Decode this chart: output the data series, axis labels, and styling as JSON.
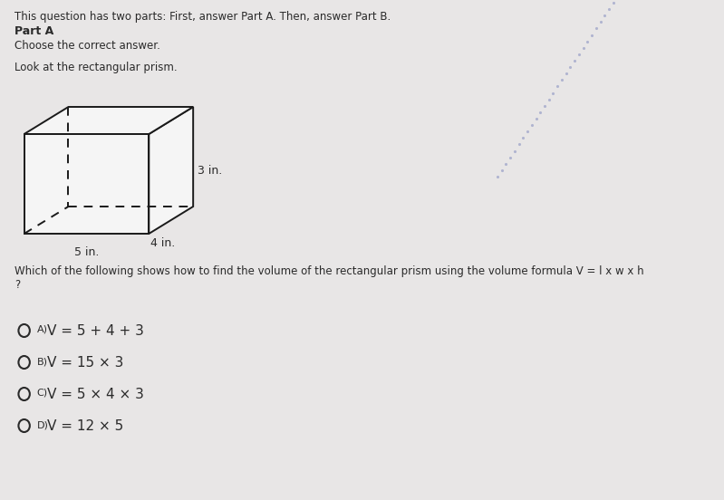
{
  "bg_color": "#e8e6e6",
  "text_color": "#2a2a2a",
  "header_line1": "This question has two parts: First, answer Part A. Then, answer Part B.",
  "header_line2": "Part A",
  "header_line3": "Choose the correct answer.",
  "header_line4": "Look at the rectangular prism.",
  "question_line1": "Which of the following shows how to find the volume of the rectangular prism using the volume formula V = l x w x h",
  "question_line2": "?",
  "options_label": [
    "A)",
    "B)",
    "C)",
    "D)"
  ],
  "options_eq": [
    "V = 5 + 4 + 3",
    "V = 15 × 3",
    "V = 5 × 4 × 3",
    "V = 12 × 5"
  ],
  "dim_label_5": "5 in.",
  "dim_label_4": "4 in.",
  "dim_label_3": "3 in.",
  "dot_line_color": "#b0b4d0",
  "prism_face_color": "#f5f5f5",
  "prism_edge_color": "#1a1a1a",
  "font_size_small": 8.5,
  "font_size_bold": 9,
  "font_size_options_label": 8,
  "font_size_options_eq": 11,
  "font_size_dims": 9
}
